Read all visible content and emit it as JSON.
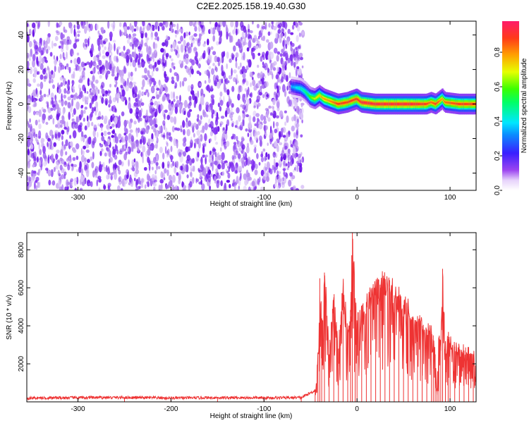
{
  "title": "C2E2.2025.158.19.40.G30",
  "chart_data": [
    {
      "type": "heatmap",
      "xlabel": "Height of straight line (km)",
      "ylabel": "Frequency (Hz)",
      "xlim": [
        -355,
        128
      ],
      "ylim": [
        -50,
        48
      ],
      "xticks": [
        -300,
        -200,
        -100,
        0,
        100
      ],
      "yticks": [
        -40,
        -20,
        0,
        20,
        40
      ],
      "colorbar": {
        "label": "Normalized spectral amplitude",
        "range": [
          0,
          0.98
        ],
        "ticks": [
          0.0,
          0.2,
          0.4,
          0.6,
          0.8
        ]
      },
      "noise_region": {
        "x_range": [
          -355,
          -58
        ],
        "y_range": [
          -50,
          48
        ],
        "amplitude_range": [
          0.02,
          0.15
        ]
      },
      "ridge": [
        {
          "x": -70,
          "y": 10,
          "amp": 0.35
        },
        {
          "x": -60,
          "y": 9,
          "amp": 0.45
        },
        {
          "x": -55,
          "y": 7,
          "amp": 0.5
        },
        {
          "x": -50,
          "y": 4,
          "amp": 0.6
        },
        {
          "x": -45,
          "y": 3,
          "amp": 0.7
        },
        {
          "x": -40,
          "y": 5,
          "amp": 0.75
        },
        {
          "x": -35,
          "y": 3,
          "amp": 0.8
        },
        {
          "x": -30,
          "y": 2,
          "amp": 0.8
        },
        {
          "x": -25,
          "y": 1,
          "amp": 0.85
        },
        {
          "x": -20,
          "y": 0,
          "amp": 0.9
        },
        {
          "x": -10,
          "y": 1,
          "amp": 0.9
        },
        {
          "x": -5,
          "y": 2,
          "amp": 0.9
        },
        {
          "x": 0,
          "y": 3,
          "amp": 0.9
        },
        {
          "x": 5,
          "y": 1,
          "amp": 0.95
        },
        {
          "x": 20,
          "y": 0,
          "amp": 0.95
        },
        {
          "x": 40,
          "y": 0,
          "amp": 0.95
        },
        {
          "x": 60,
          "y": 0,
          "amp": 0.95
        },
        {
          "x": 75,
          "y": 0,
          "amp": 0.9
        },
        {
          "x": 80,
          "y": 1,
          "amp": 0.85
        },
        {
          "x": 85,
          "y": 0,
          "amp": 0.9
        },
        {
          "x": 92,
          "y": 3,
          "amp": 0.8
        },
        {
          "x": 95,
          "y": 1,
          "amp": 0.85
        },
        {
          "x": 110,
          "y": 0,
          "amp": 0.9
        },
        {
          "x": 128,
          "y": 0,
          "amp": 0.9
        }
      ]
    },
    {
      "type": "line",
      "xlabel": "Height of straight line (km)",
      "ylabel": "SNR (10 * v/v)",
      "xlim": [
        -355,
        128
      ],
      "ylim": [
        0,
        8900
      ],
      "xticks": [
        -300,
        -200,
        -100,
        0,
        100
      ],
      "yticks": [
        2000,
        4000,
        6000,
        8000
      ],
      "color": "#ee3333",
      "series": [
        {
          "x": [
            -355,
            -300,
            -250,
            -200,
            -150,
            -100,
            -60,
            -45,
            -42,
            -40,
            -38,
            -35,
            -30,
            -25,
            -20,
            -15,
            -10,
            -7,
            -5,
            -2,
            0,
            5,
            10,
            15,
            20,
            25,
            30,
            35,
            40,
            45,
            50,
            55,
            60,
            65,
            70,
            75,
            80,
            82,
            84,
            86,
            88,
            90,
            92,
            95,
            98,
            100,
            105,
            110,
            115,
            120,
            125,
            128
          ],
          "y": [
            200,
            220,
            230,
            200,
            220,
            210,
            220,
            600,
            2500,
            6500,
            4000,
            6800,
            2500,
            5500,
            2800,
            6000,
            3800,
            4500,
            8900,
            5000,
            4200,
            4800,
            5200,
            5500,
            5700,
            6000,
            6300,
            6400,
            5600,
            5400,
            5100,
            4900,
            4500,
            4200,
            4000,
            3800,
            3700,
            3500,
            2500,
            400,
            3400,
            3200,
            7000,
            3000,
            3300,
            3100,
            2900,
            2700,
            2700,
            2600,
            2500,
            2200
          ]
        }
      ]
    }
  ]
}
